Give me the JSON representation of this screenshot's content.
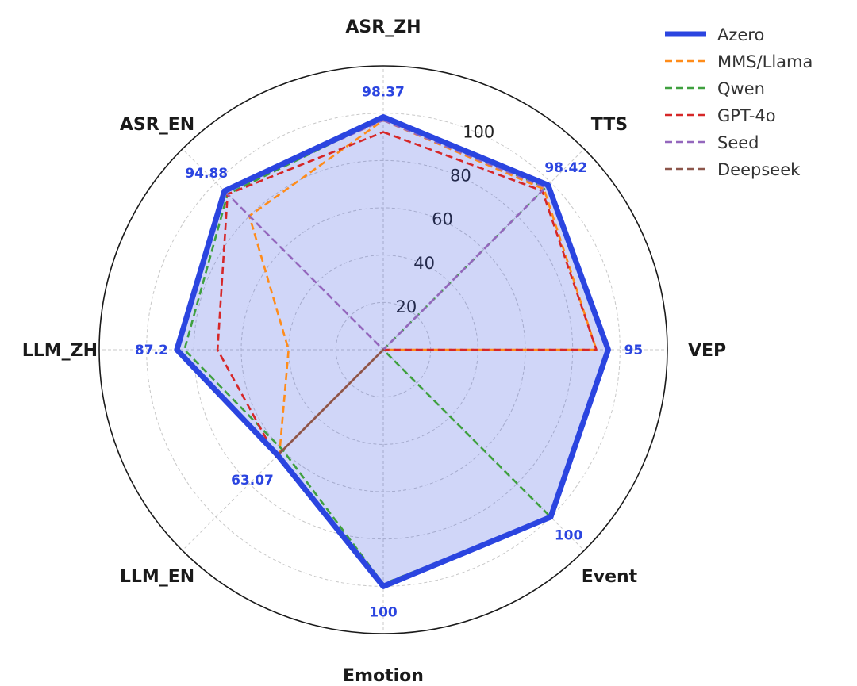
{
  "chart_data": {
    "type": "radar",
    "axes": [
      "ASR_ZH",
      "TTS",
      "VEP",
      "Event",
      "Emotion",
      "LLM_EN",
      "LLM_ZH",
      "ASR_EN"
    ],
    "rticks": [
      20,
      40,
      60,
      80,
      100
    ],
    "rlim": [
      0,
      120
    ],
    "series": [
      {
        "name": "Azero",
        "values": [
          98.37,
          98.42,
          95,
          100,
          100,
          63.07,
          87.2,
          94.88
        ],
        "color": "#2b45e0",
        "style": "solid",
        "fill": true
      },
      {
        "name": "MMS/Llama",
        "values": [
          97,
          96,
          90,
          0,
          0,
          62,
          40,
          80
        ],
        "color": "#ff8c1a",
        "style": "dashed"
      },
      {
        "name": "Qwen",
        "values": [
          98,
          97,
          0,
          100,
          99,
          60,
          84,
          93
        ],
        "color": "#3fa03f",
        "style": "dashed"
      },
      {
        "name": "GPT-4o",
        "values": [
          92,
          95,
          90,
          0,
          0,
          64,
          70,
          93
        ],
        "color": "#d62728",
        "style": "dashed"
      },
      {
        "name": "Seed",
        "values": [
          97,
          97,
          0,
          0,
          0,
          0,
          0,
          95
        ],
        "color": "#9467bd",
        "style": "dashed"
      },
      {
        "name": "Deepseek",
        "values": [
          0,
          0,
          0,
          0,
          0,
          64,
          0,
          0
        ],
        "color": "#8c564b",
        "style": "solid"
      }
    ],
    "data_labels": [
      "98.37",
      "98.42",
      "95",
      "100",
      "100",
      "63.07",
      "87.2",
      "94.88"
    ],
    "data_label_color": "#2b45e0",
    "grid": true,
    "legend_placement": "top-right"
  }
}
